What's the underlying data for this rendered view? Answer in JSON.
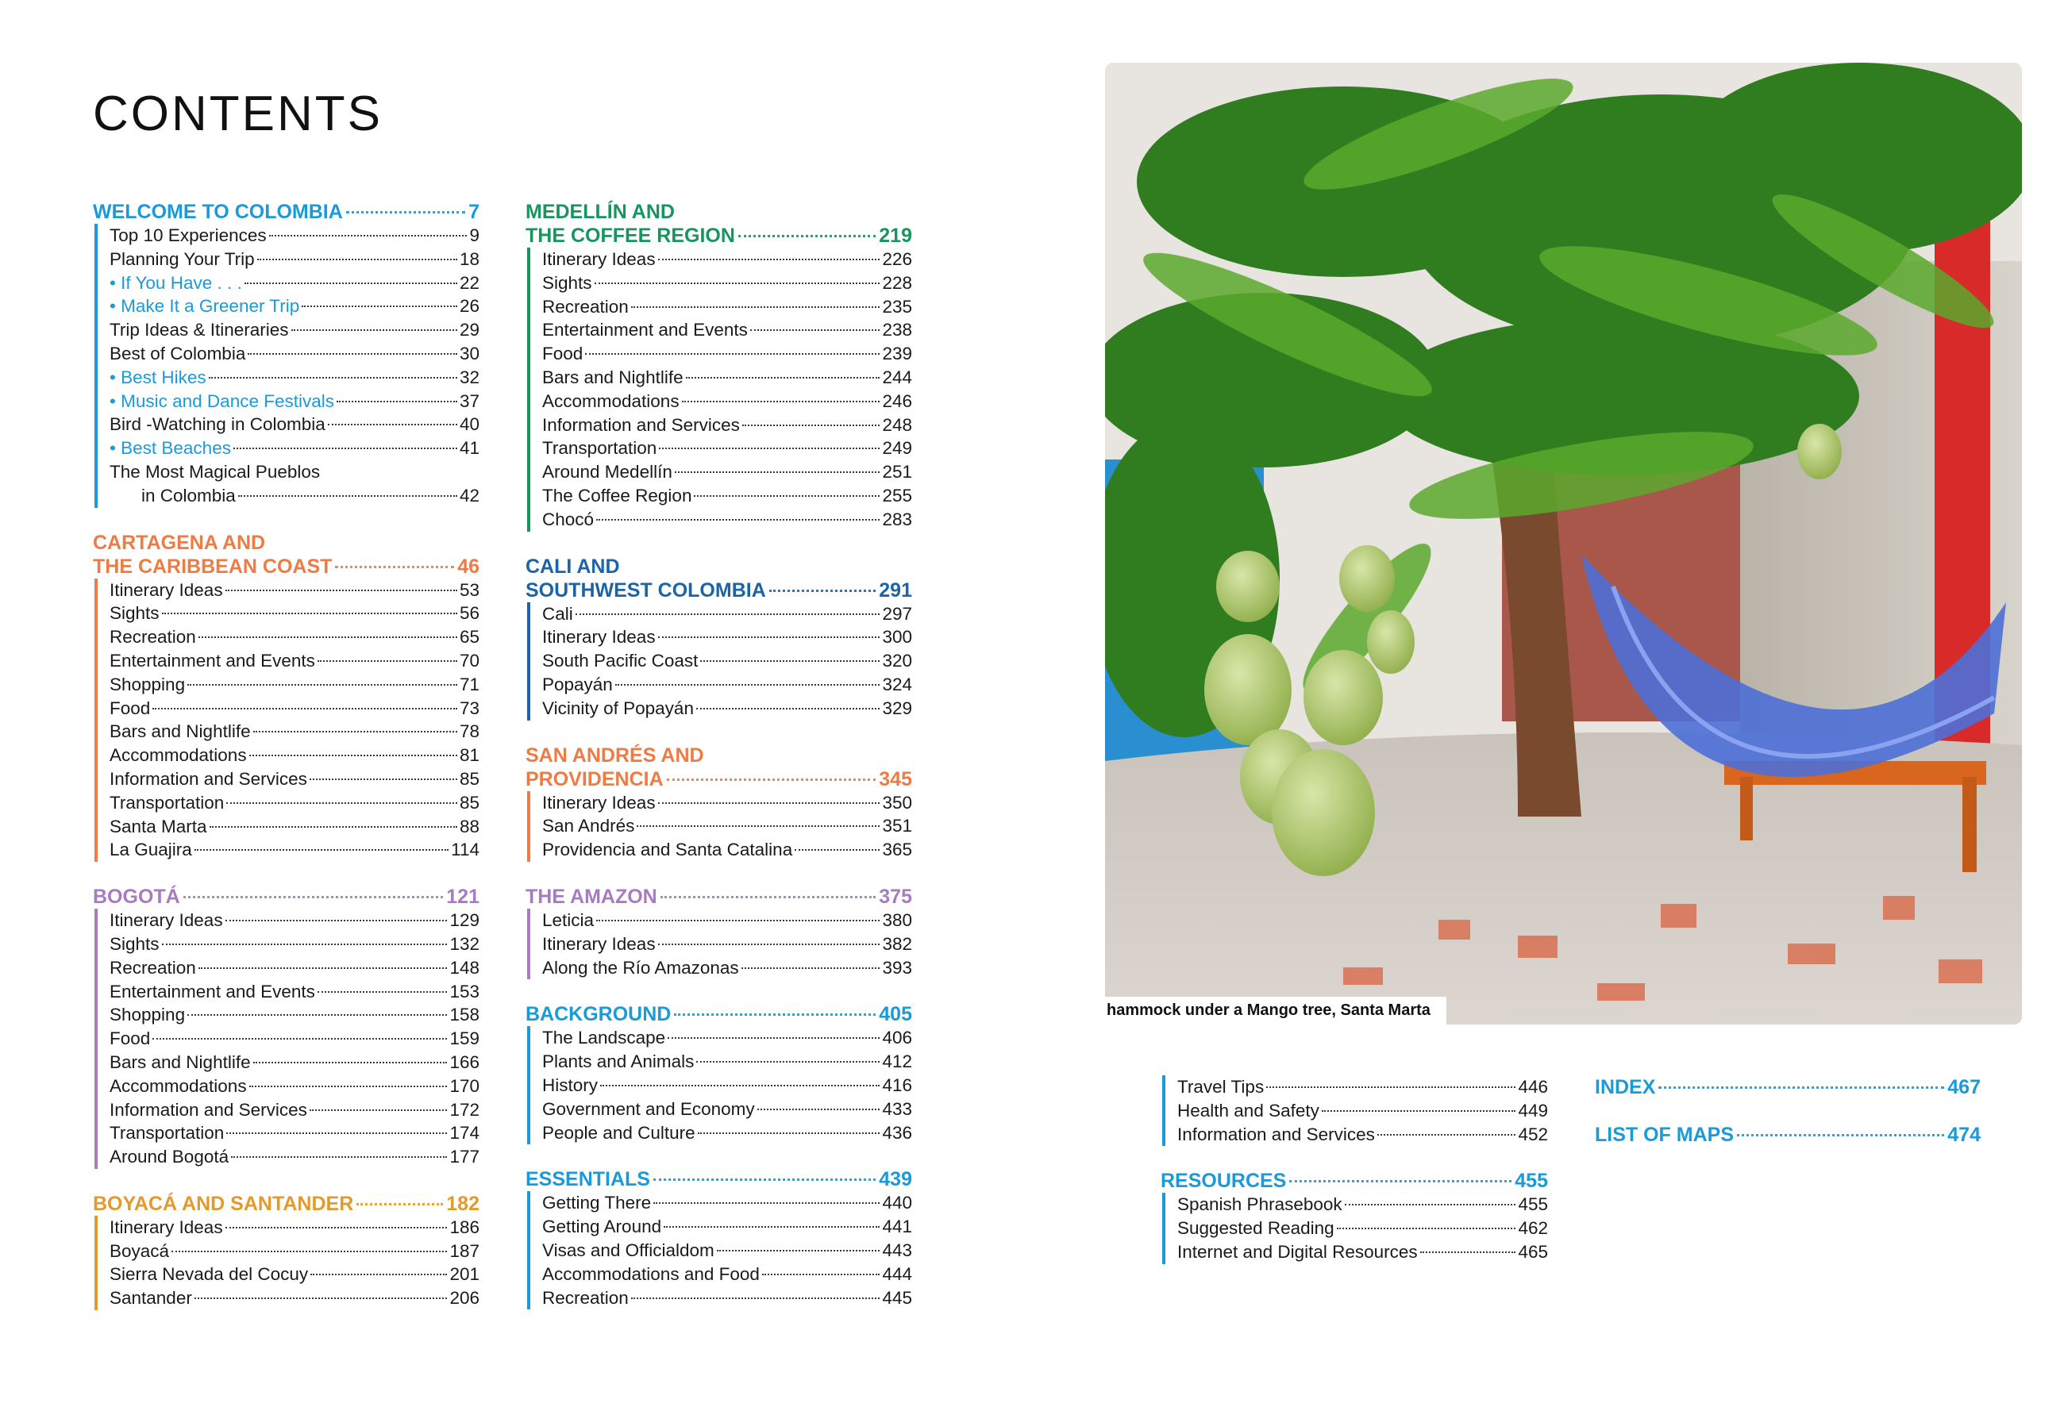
{
  "page_title": "CONTENTS",
  "columns": [
    [
      {
        "title": [
          "WELCOME TO COLOMBIA"
        ],
        "page": "7",
        "color": "#1a9ad9",
        "items": [
          {
            "label": "Top 10 Experiences",
            "page": "9"
          },
          {
            "label": "Planning Your Trip",
            "page": "18"
          },
          {
            "label": "• If You Have . . .",
            "page": "22",
            "highlight": true
          },
          {
            "label": "• Make It a Greener Trip",
            "page": "26",
            "highlight": true
          },
          {
            "label": "Trip Ideas & Itineraries",
            "page": "29"
          },
          {
            "label": "Best of Colombia",
            "page": "30"
          },
          {
            "label": "• Best Hikes",
            "page": "32",
            "highlight": true
          },
          {
            "label": "• Music and Dance Festivals",
            "page": "37",
            "highlight": true
          },
          {
            "label": "Bird -Watching in Colombia",
            "page": "40"
          },
          {
            "label": "• Best Beaches",
            "page": "41",
            "highlight": true
          },
          {
            "label": "The Most Magical Pueblos",
            "cont": "in Colombia",
            "page": "42"
          }
        ]
      },
      {
        "title": [
          "CARTAGENA AND",
          "THE CARIBBEAN COAST"
        ],
        "page": "46",
        "color": "#ee7b43",
        "items": [
          {
            "label": "Itinerary Ideas",
            "page": "53"
          },
          {
            "label": "Sights",
            "page": "56"
          },
          {
            "label": "Recreation",
            "page": "65"
          },
          {
            "label": "Entertainment and Events",
            "page": "70"
          },
          {
            "label": "Shopping",
            "page": "71"
          },
          {
            "label": "Food",
            "page": "73"
          },
          {
            "label": "Bars and Nightlife",
            "page": "78"
          },
          {
            "label": "Accommodations",
            "page": "81"
          },
          {
            "label": "Information and Services",
            "page": "85"
          },
          {
            "label": "Transportation",
            "page": "85"
          },
          {
            "label": "Santa Marta",
            "page": "88"
          },
          {
            "label": "La Guajira",
            "page": "114"
          }
        ]
      },
      {
        "title": [
          "BOGOTÁ"
        ],
        "page": "121",
        "color": "#a67bc2",
        "items": [
          {
            "label": "Itinerary Ideas",
            "page": "129"
          },
          {
            "label": "Sights",
            "page": "132"
          },
          {
            "label": "Recreation",
            "page": "148"
          },
          {
            "label": "Entertainment and Events",
            "page": "153"
          },
          {
            "label": "Shopping",
            "page": "158"
          },
          {
            "label": "Food",
            "page": "159"
          },
          {
            "label": "Bars and Nightlife",
            "page": "166"
          },
          {
            "label": "Accommodations",
            "page": "170"
          },
          {
            "label": "Information and Services",
            "page": "172"
          },
          {
            "label": "Transportation",
            "page": "174"
          },
          {
            "label": "Around Bogotá",
            "page": "177"
          }
        ]
      },
      {
        "title": [
          "BOYACÁ AND SANTANDER"
        ],
        "page": "182",
        "color": "#e39a2d",
        "items": [
          {
            "label": "Itinerary Ideas",
            "page": "186"
          },
          {
            "label": "Boyacá",
            "page": "187"
          },
          {
            "label": "Sierra Nevada del Cocuy",
            "page": "201"
          },
          {
            "label": "Santander",
            "page": "206"
          }
        ]
      }
    ],
    [
      {
        "title": [
          "MEDELLÍN AND",
          "THE COFFEE REGION"
        ],
        "page": "219",
        "color": "#17955e",
        "items": [
          {
            "label": "Itinerary Ideas",
            "page": "226"
          },
          {
            "label": "Sights",
            "page": "228"
          },
          {
            "label": "Recreation",
            "page": "235"
          },
          {
            "label": "Entertainment and Events",
            "page": "238"
          },
          {
            "label": "Food",
            "page": "239"
          },
          {
            "label": "Bars and Nightlife",
            "page": "244"
          },
          {
            "label": "Accommodations",
            "page": "246"
          },
          {
            "label": "Information and Services",
            "page": "248"
          },
          {
            "label": "Transportation",
            "page": "249"
          },
          {
            "label": "Around Medellín",
            "page": "251"
          },
          {
            "label": "The Coffee Region",
            "page": "255"
          },
          {
            "label": "Chocó",
            "page": "283"
          }
        ]
      },
      {
        "title": [
          "CALI AND",
          "SOUTHWEST COLOMBIA"
        ],
        "page": "291",
        "color": "#1b64a8",
        "items": [
          {
            "label": "Cali",
            "page": "297"
          },
          {
            "label": "Itinerary Ideas",
            "page": "300"
          },
          {
            "label": "South Pacific Coast",
            "page": "320"
          },
          {
            "label": "Popayán",
            "page": "324"
          },
          {
            "label": "Vicinity of Popayán",
            "page": "329"
          }
        ]
      },
      {
        "title": [
          "SAN ANDRÉS AND",
          "PROVIDENCIA"
        ],
        "page": "345",
        "color": "#ee7b43",
        "items": [
          {
            "label": "Itinerary Ideas",
            "page": "350"
          },
          {
            "label": "San Andrés",
            "page": "351"
          },
          {
            "label": "Providencia and Santa Catalina",
            "page": "365"
          }
        ]
      },
      {
        "title": [
          "THE AMAZON"
        ],
        "page": "375",
        "color": "#a67bc2",
        "items": [
          {
            "label": "Leticia",
            "page": "380"
          },
          {
            "label": "Itinerary Ideas",
            "page": "382"
          },
          {
            "label": "Along the Río Amazonas",
            "page": "393"
          }
        ]
      },
      {
        "title": [
          "BACKGROUND"
        ],
        "page": "405",
        "color": "#1a9ad9",
        "items": [
          {
            "label": "The Landscape",
            "page": "406"
          },
          {
            "label": "Plants and Animals",
            "page": "412"
          },
          {
            "label": "History",
            "page": "416"
          },
          {
            "label": "Government and Economy",
            "page": "433"
          },
          {
            "label": "People and Culture",
            "page": "436"
          }
        ]
      },
      {
        "title": [
          "ESSENTIALS"
        ],
        "page": "439",
        "color": "#1a9ad9",
        "items": [
          {
            "label": "Getting There",
            "page": "440"
          },
          {
            "label": "Getting Around",
            "page": "441"
          },
          {
            "label": "Visas and Officialdom",
            "page": "443"
          },
          {
            "label": "Accommodations and Food",
            "page": "444"
          },
          {
            "label": "Recreation",
            "page": "445"
          }
        ]
      }
    ],
    [
      {
        "title": [],
        "page": "",
        "color": "#1a9ad9",
        "items": [
          {
            "label": "Travel Tips",
            "page": "446"
          },
          {
            "label": "Health and Safety",
            "page": "449"
          },
          {
            "label": "Information and Services",
            "page": "452"
          }
        ]
      },
      {
        "title": [
          "RESOURCES"
        ],
        "page": "455",
        "color": "#1a9ad9",
        "items": [
          {
            "label": "Spanish Phrasebook",
            "page": "455"
          },
          {
            "label": "Suggested Reading",
            "page": "462"
          },
          {
            "label": "Internet and Digital Resources",
            "page": "465"
          }
        ]
      }
    ],
    [
      {
        "title": [
          "INDEX"
        ],
        "page": "467",
        "color": "#1a9ad9",
        "items": []
      },
      {
        "title": [
          "LIST OF MAPS"
        ],
        "page": "474",
        "color": "#1a9ad9",
        "items": []
      }
    ]
  ],
  "photo": {
    "caption": "hammock under a Mango tree, Santa Marta"
  }
}
